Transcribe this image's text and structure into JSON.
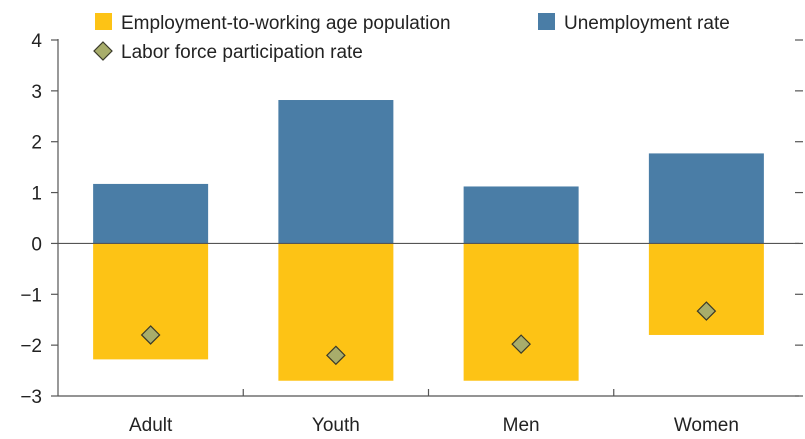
{
  "chart_data": {
    "type": "bar",
    "stacked": true,
    "categories": [
      "Adult",
      "Youth",
      "Men",
      "Women"
    ],
    "series": [
      {
        "name": "Employment-to-working age population",
        "kind": "bar",
        "color": "#fdc315",
        "values": [
          -2.28,
          -2.7,
          -2.7,
          -1.8
        ]
      },
      {
        "name": "Unemployment rate",
        "kind": "bar",
        "color": "#4a7da6",
        "values": [
          1.17,
          2.82,
          1.12,
          1.77
        ]
      },
      {
        "name": "Labor force participation rate",
        "kind": "marker",
        "marker": "diamond",
        "color": "#a8ad6b",
        "values": [
          -1.8,
          -2.2,
          -1.98,
          -1.33
        ]
      }
    ],
    "y_ticks": [
      "4",
      "3",
      "2",
      "1",
      "0",
      "−1",
      "−2",
      "−3"
    ],
    "y_tick_values": [
      4,
      3,
      2,
      1,
      0,
      -1,
      -2,
      -3
    ],
    "ylim": [
      -3,
      4
    ],
    "grid": false,
    "legend_position": "top-left"
  }
}
